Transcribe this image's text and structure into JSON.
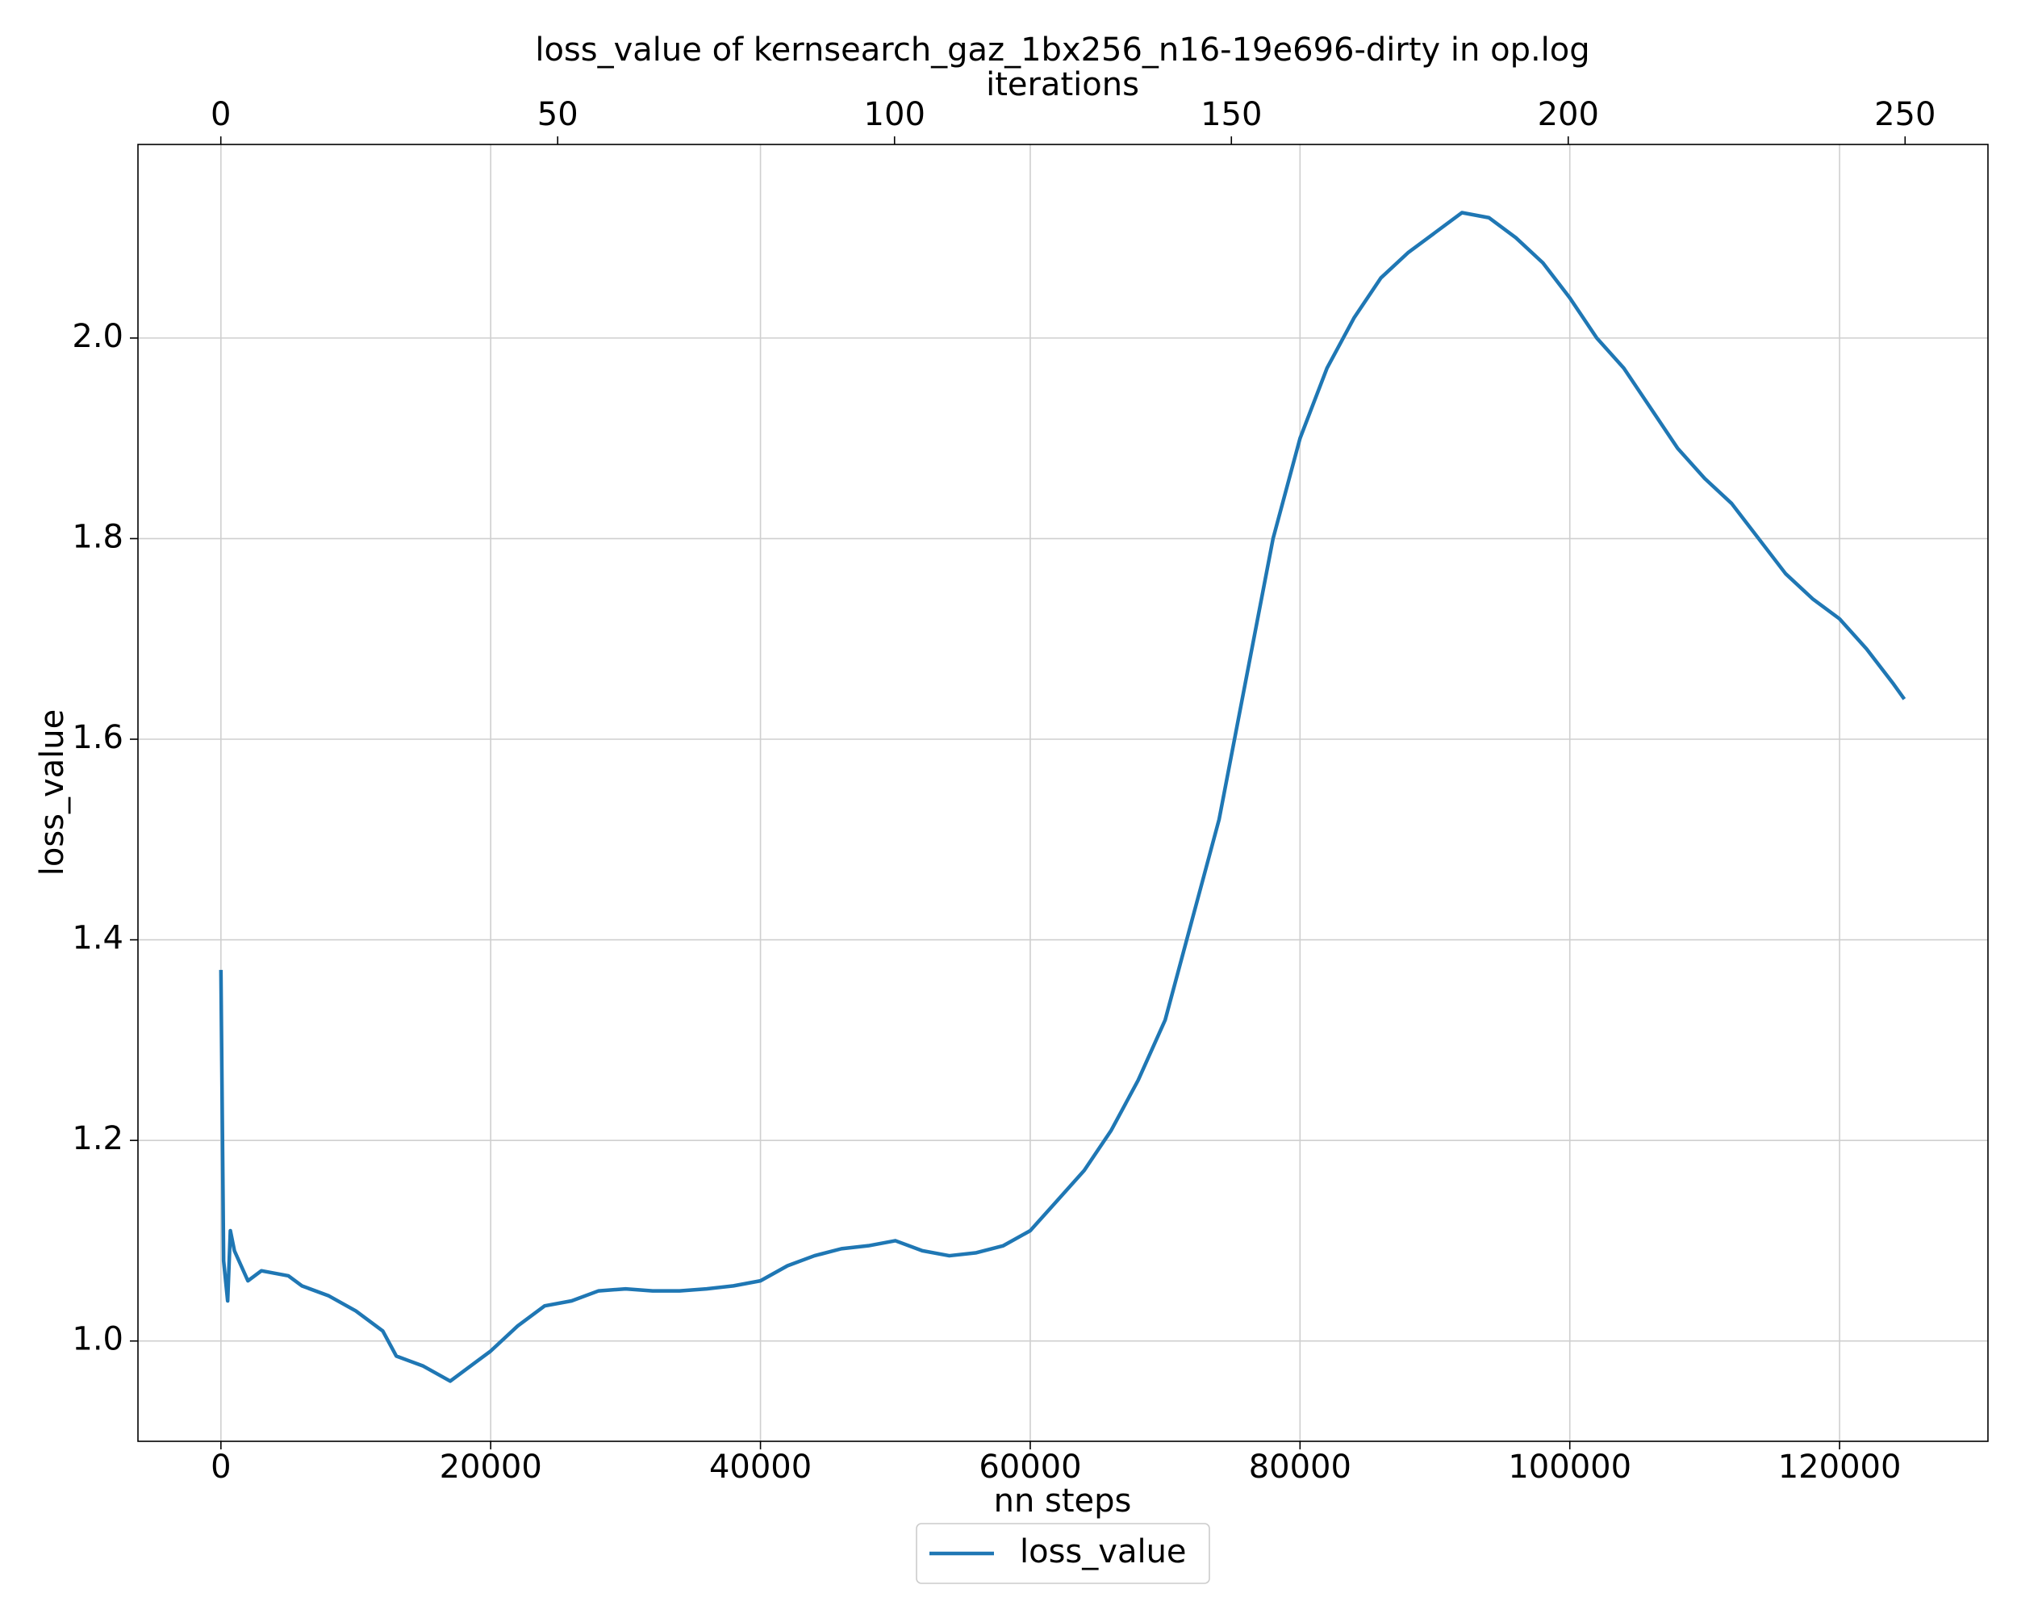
{
  "chart_data": {
    "type": "line",
    "title": "loss_value of kernsearch_gaz_1bx256_n16-19e696-dirty in op.log",
    "xlabel": "nn steps",
    "ylabel": "loss_value",
    "x2label": "iterations",
    "x": [
      0,
      200,
      500,
      700,
      1000,
      2000,
      3000,
      5000,
      6000,
      8000,
      10000,
      12000,
      13000,
      15000,
      17000,
      19000,
      20000,
      22000,
      24000,
      26000,
      28000,
      30000,
      32000,
      34000,
      36000,
      38000,
      40000,
      42000,
      44000,
      46000,
      48000,
      50000,
      52000,
      54000,
      56000,
      58000,
      60000,
      62000,
      64000,
      66000,
      68000,
      70000,
      72000,
      74000,
      76000,
      78000,
      80000,
      82000,
      84000,
      86000,
      88000,
      90000,
      92000,
      94000,
      96000,
      98000,
      100000,
      102000,
      104000,
      106000,
      108000,
      110000,
      112000,
      114000,
      116000,
      118000,
      120000,
      122000,
      124000,
      124800
    ],
    "series": [
      {
        "name": "loss_value",
        "color": "#1f77b4",
        "values": [
          1.37,
          1.08,
          1.04,
          1.11,
          1.09,
          1.06,
          1.07,
          1.065,
          1.055,
          1.045,
          1.03,
          1.01,
          0.985,
          0.975,
          0.96,
          0.98,
          0.99,
          1.015,
          1.035,
          1.04,
          1.05,
          1.052,
          1.05,
          1.05,
          1.052,
          1.055,
          1.06,
          1.075,
          1.085,
          1.092,
          1.095,
          1.1,
          1.09,
          1.085,
          1.088,
          1.095,
          1.11,
          1.14,
          1.17,
          1.21,
          1.26,
          1.32,
          1.42,
          1.52,
          1.66,
          1.8,
          1.9,
          1.97,
          2.02,
          2.06,
          2.085,
          2.105,
          2.125,
          2.12,
          2.1,
          2.075,
          2.04,
          2.0,
          1.97,
          1.93,
          1.89,
          1.86,
          1.835,
          1.8,
          1.765,
          1.74,
          1.72,
          1.69,
          1.655,
          1.64
        ]
      }
    ],
    "xlim": [
      -6150,
      131000
    ],
    "xticks": [
      0,
      20000,
      40000,
      60000,
      80000,
      100000,
      120000
    ],
    "x2lim": [
      -12.3,
      262.3
    ],
    "x2ticks": [
      0,
      50,
      100,
      150,
      200,
      250
    ],
    "ylim": [
      0.9,
      2.193
    ],
    "yticks": [
      {
        "value": 1.0,
        "label": "1.0"
      },
      1.2,
      1.4,
      1.6,
      1.8,
      {
        "value": 2.0,
        "label": "2.0"
      }
    ],
    "grid": true,
    "legend": "below"
  }
}
